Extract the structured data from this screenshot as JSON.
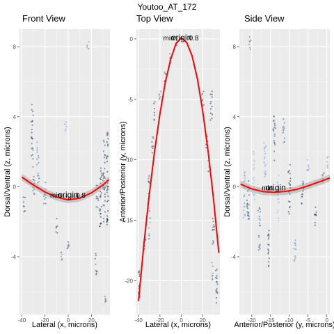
{
  "figure_title": "Youtoo_AT_172",
  "chart_data": [
    {
      "type": "scatter",
      "title": "Front View",
      "xlabel": "Lateral (x, microns)",
      "ylabel": "Dorsal/Ventral (z, microns)",
      "xlim": [
        -42,
        36
      ],
      "ylim": [
        -7.3,
        9
      ],
      "xticks": [
        -40,
        -20,
        0,
        20
      ],
      "yticks": [
        -4,
        0,
        4,
        8
      ],
      "annotations": [
        "min",
        "origin",
        "0.8"
      ],
      "fit_curve": {
        "x": [
          -40,
          -30,
          -20,
          -10,
          0,
          10,
          20,
          30,
          35
        ],
        "y": [
          0.55,
          0.1,
          -0.3,
          -0.6,
          -0.75,
          -0.65,
          -0.35,
          0.1,
          0.4
        ]
      },
      "clusters": [
        {
          "x": -38,
          "ymin": -1.5,
          "ymax": -0.5,
          "color": "#1f3a5a"
        },
        {
          "x": -31,
          "ymin": 1.5,
          "ymax": 4.7,
          "color": "#2c4a6e"
        },
        {
          "x": -30,
          "ymin": -0.5,
          "ymax": 1.2,
          "color": "#3f6790"
        },
        {
          "x": -26,
          "ymin": 0.2,
          "ymax": 2.6,
          "color": "#4a7fb5"
        },
        {
          "x": -20,
          "ymin": -1.0,
          "ymax": 0.3,
          "color": "#345c85"
        },
        {
          "x": -10,
          "ymin": -2.7,
          "ymax": -1.8,
          "color": "#2a4a70"
        },
        {
          "x": -6,
          "ymin": -4.6,
          "ymax": -3.6,
          "color": "#5a8cc0"
        },
        {
          "x": 0,
          "ymin": -3.8,
          "ymax": -3.1,
          "color": "#2c4a6e"
        },
        {
          "x": -2,
          "ymin": 3.2,
          "ymax": 3.8,
          "color": "#6fa3d8"
        },
        {
          "x": 24,
          "ymin": -5.2,
          "ymax": -3.8,
          "color": "#264a72"
        },
        {
          "x": 25,
          "ymin": -1.2,
          "ymax": 0.3,
          "color": "#3f6790"
        },
        {
          "x": 28,
          "ymin": -2.4,
          "ymax": 1.4,
          "color": "#1f3a5a"
        },
        {
          "x": 31,
          "ymin": -2.0,
          "ymax": 2.8,
          "color": "#2c4a6e"
        },
        {
          "x": 34,
          "ymin": -2.2,
          "ymax": 3.2,
          "color": "#1b3350"
        },
        {
          "x": 32,
          "ymin": -6.6,
          "ymax": -6.2,
          "color": "#5f6f80"
        },
        {
          "x": 17,
          "ymin": 7.8,
          "ymax": 8.3,
          "color": "#8a96a3"
        }
      ]
    },
    {
      "type": "scatter",
      "title": "Top View",
      "xlabel": "Lateral (x, microns)",
      "ylabel": "Anterior/Posterior (y, microns)",
      "xlim": [
        -42,
        36
      ],
      "ylim": [
        -22.8,
        0.8
      ],
      "xticks": [
        -40,
        -20,
        0,
        20
      ],
      "yticks": [
        0,
        -5,
        -10,
        -15,
        -20
      ],
      "annotations": [
        "min",
        "origin",
        "0.8"
      ],
      "fit_curve": {
        "x": [
          -40,
          -35,
          -30,
          -25,
          -20,
          -15,
          -10,
          -5,
          0,
          5,
          10,
          15,
          20,
          25,
          30,
          35
        ],
        "y": [
          -21.7,
          -17.0,
          -12.9,
          -9.3,
          -6.2,
          -3.6,
          -1.7,
          -0.4,
          0.1,
          -0.3,
          -1.4,
          -3.3,
          -6.0,
          -9.3,
          -13.2,
          -17.7
        ]
      },
      "clusters": [
        {
          "x": -39,
          "ymin": -21.5,
          "ymax": -19.0,
          "color": "#1f3a5a"
        },
        {
          "x": -34,
          "ymin": -17.8,
          "ymax": -16.2,
          "color": "#2c4a6e"
        },
        {
          "x": -30,
          "ymin": -13.0,
          "ymax": -11.0,
          "color": "#3f6790"
        },
        {
          "x": -27,
          "ymin": -9.5,
          "ymax": -8.0,
          "color": "#2c4a6e"
        },
        {
          "x": -25,
          "ymin": -6.8,
          "ymax": -5.2,
          "color": "#1f3a5a"
        },
        {
          "x": -20,
          "ymin": -5.3,
          "ymax": -4.3,
          "color": "#4a7fb5"
        },
        {
          "x": -15,
          "ymin": -3.6,
          "ymax": -2.4,
          "color": "#2c4a6e"
        },
        {
          "x": -10,
          "ymin": -2.0,
          "ymax": -1.2,
          "color": "#3f6790"
        },
        {
          "x": -5,
          "ymin": -0.6,
          "ymax": 0.2,
          "color": "#1f3a5a"
        },
        {
          "x": -30,
          "ymin": -16.6,
          "ymax": -14.0,
          "color": "#5a8cc0"
        },
        {
          "x": 20,
          "ymin": -5.6,
          "ymax": -4.0,
          "color": "#2c4a6e"
        },
        {
          "x": 24,
          "ymin": -9.2,
          "ymax": -8.0,
          "color": "#1f3a5a"
        },
        {
          "x": 26,
          "ymin": -11.0,
          "ymax": -9.8,
          "color": "#3f6790"
        },
        {
          "x": 28,
          "ymin": -6.8,
          "ymax": -4.2,
          "color": "#1b3350"
        },
        {
          "x": 30,
          "ymin": -17.0,
          "ymax": -14.5,
          "color": "#2c4a6e"
        },
        {
          "x": 33,
          "ymin": -22.3,
          "ymax": -19.0,
          "color": "#1f3a5a"
        },
        {
          "x": 29,
          "ymin": -20.0,
          "ymax": -18.3,
          "color": "#4a7fb5"
        }
      ]
    },
    {
      "type": "scatter",
      "title": "Side View",
      "xlabel": "Anterior/Posterior (y, microns)",
      "ylabel": "Dorsal/Ventral (z, microns)",
      "xlim": [
        -23.3,
        0.8
      ],
      "ylim": [
        -7.3,
        9
      ],
      "xticks": [
        -20,
        -15,
        -10,
        -5,
        0
      ],
      "yticks": [
        -4,
        0,
        4,
        8
      ],
      "annotations": [
        "min",
        "origin"
      ],
      "fit_curve": {
        "x": [
          -23,
          -20,
          -17,
          -14,
          -11,
          -8,
          -5,
          -2,
          0.8
        ],
        "y": [
          0.15,
          -0.12,
          -0.28,
          -0.32,
          -0.27,
          -0.15,
          0.05,
          0.28,
          0.5
        ]
      },
      "clusters": [
        {
          "x": -22,
          "ymin": -1.8,
          "ymax": 1.0,
          "color": "#6fa3d8"
        },
        {
          "x": -21,
          "ymin": -2.5,
          "ymax": 0.5,
          "color": "#2c4a6e"
        },
        {
          "x": -19.5,
          "ymin": -0.8,
          "ymax": 2.2,
          "color": "#8abde6"
        },
        {
          "x": -18,
          "ymin": -3.8,
          "ymax": -1.0,
          "color": "#3f6790"
        },
        {
          "x": -16.5,
          "ymin": 0.5,
          "ymax": 2.8,
          "color": "#6fa3d8"
        },
        {
          "x": -15.5,
          "ymin": -4.8,
          "ymax": -2.5,
          "color": "#1f3a5a"
        },
        {
          "x": -14,
          "ymin": 1.5,
          "ymax": 4.3,
          "color": "#2c4a6e"
        },
        {
          "x": -13,
          "ymin": -2.0,
          "ymax": 0.8,
          "color": "#8abde6"
        },
        {
          "x": -11.5,
          "ymin": 2.3,
          "ymax": 4.0,
          "color": "#3f6790"
        },
        {
          "x": -10,
          "ymin": -1.6,
          "ymax": 1.5,
          "color": "#1b3350"
        },
        {
          "x": -8.5,
          "ymin": -4.5,
          "ymax": -3.0,
          "color": "#4a7fb5"
        },
        {
          "x": -6.5,
          "ymin": -1.2,
          "ymax": 0.6,
          "color": "#2c4a6e"
        },
        {
          "x": -5,
          "ymin": 0.8,
          "ymax": 2.0,
          "color": "#6fa3d8"
        },
        {
          "x": -3,
          "ymin": -2.2,
          "ymax": -0.8,
          "color": "#1f3a5a"
        },
        {
          "x": -1,
          "ymin": 0.0,
          "ymax": 1.0,
          "color": "#5f6f80"
        },
        {
          "x": 0.2,
          "ymin": 0.9,
          "ymax": 1.8,
          "color": "#8a96a3"
        },
        {
          "x": -20.5,
          "ymin": 7.6,
          "ymax": 8.6,
          "color": "#5f6f80"
        }
      ]
    }
  ]
}
